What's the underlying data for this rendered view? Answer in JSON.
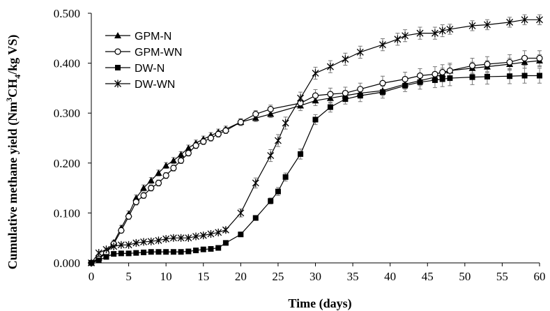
{
  "chart_data": {
    "type": "line",
    "title": "",
    "xlabel": "Time (days)",
    "ylabel_parts": [
      "Cumulative methane yield (Nm",
      "3",
      "CH",
      "4",
      "/kg VS)"
    ],
    "xlim": [
      0,
      60
    ],
    "ylim": [
      0,
      0.5
    ],
    "x_ticks": [
      0,
      5,
      10,
      15,
      20,
      25,
      30,
      35,
      40,
      45,
      50,
      55,
      60
    ],
    "y_ticks": [
      "0.000",
      "0.100",
      "0.200",
      "0.300",
      "0.400",
      "0.500"
    ],
    "y_tick_values": [
      0,
      0.1,
      0.2,
      0.3,
      0.4,
      0.5
    ],
    "grid": false,
    "legend_position": "top-left",
    "series": [
      {
        "name": "GPM-N",
        "marker": "triangle",
        "color": "#000000",
        "x": [
          0,
          1,
          2,
          3,
          4,
          5,
          6,
          7,
          8,
          9,
          10,
          11,
          12,
          13,
          14,
          15,
          16,
          17,
          18,
          20,
          22,
          24,
          28,
          30,
          32,
          34,
          36,
          39,
          42,
          44,
          46,
          47,
          48,
          51,
          53,
          56,
          58,
          60
        ],
        "y": [
          0.0,
          0.01,
          0.022,
          0.041,
          0.07,
          0.098,
          0.13,
          0.15,
          0.165,
          0.18,
          0.195,
          0.205,
          0.217,
          0.23,
          0.24,
          0.248,
          0.255,
          0.262,
          0.268,
          0.282,
          0.29,
          0.298,
          0.315,
          0.325,
          0.33,
          0.335,
          0.34,
          0.345,
          0.358,
          0.365,
          0.372,
          0.378,
          0.385,
          0.39,
          0.393,
          0.398,
          0.402,
          0.405
        ],
        "err": [
          0,
          0.003,
          0.004,
          0.004,
          0.005,
          0.006,
          0.006,
          0.006,
          0.006,
          0.006,
          0.006,
          0.006,
          0.006,
          0.006,
          0.006,
          0.006,
          0.006,
          0.006,
          0.006,
          0.006,
          0.007,
          0.007,
          0.01,
          0.01,
          0.01,
          0.01,
          0.01,
          0.01,
          0.01,
          0.01,
          0.01,
          0.012,
          0.012,
          0.012,
          0.012,
          0.012,
          0.012,
          0.012
        ]
      },
      {
        "name": "GPM-WN",
        "marker": "circle-open",
        "color": "#000000",
        "x": [
          0,
          1,
          2,
          3,
          4,
          5,
          6,
          7,
          8,
          9,
          10,
          11,
          12,
          13,
          14,
          15,
          16,
          17,
          18,
          20,
          22,
          24,
          28,
          30,
          32,
          34,
          36,
          39,
          42,
          44,
          46,
          47,
          48,
          51,
          53,
          56,
          58,
          60
        ],
        "y": [
          0.0,
          0.008,
          0.02,
          0.038,
          0.065,
          0.093,
          0.122,
          0.135,
          0.15,
          0.16,
          0.175,
          0.19,
          0.205,
          0.22,
          0.235,
          0.243,
          0.25,
          0.258,
          0.265,
          0.282,
          0.298,
          0.308,
          0.32,
          0.335,
          0.338,
          0.34,
          0.348,
          0.36,
          0.368,
          0.375,
          0.378,
          0.382,
          0.385,
          0.395,
          0.398,
          0.402,
          0.41,
          0.41
        ],
        "err": [
          0,
          0.003,
          0.004,
          0.004,
          0.005,
          0.006,
          0.006,
          0.006,
          0.006,
          0.006,
          0.006,
          0.006,
          0.006,
          0.006,
          0.006,
          0.006,
          0.006,
          0.006,
          0.006,
          0.007,
          0.007,
          0.008,
          0.01,
          0.012,
          0.012,
          0.012,
          0.012,
          0.014,
          0.014,
          0.014,
          0.015,
          0.015,
          0.015,
          0.015,
          0.015,
          0.015,
          0.015,
          0.015
        ]
      },
      {
        "name": "DW-N",
        "marker": "square",
        "color": "#000000",
        "x": [
          0,
          1,
          2,
          3,
          4,
          5,
          6,
          7,
          8,
          9,
          10,
          11,
          12,
          13,
          14,
          15,
          16,
          17,
          18,
          20,
          22,
          24,
          25,
          26,
          28,
          30,
          32,
          34,
          36,
          39,
          42,
          44,
          46,
          47,
          48,
          51,
          53,
          56,
          58,
          60
        ],
        "y": [
          0.0,
          0.005,
          0.012,
          0.018,
          0.019,
          0.019,
          0.02,
          0.021,
          0.022,
          0.022,
          0.022,
          0.022,
          0.022,
          0.023,
          0.025,
          0.027,
          0.028,
          0.03,
          0.04,
          0.057,
          0.09,
          0.124,
          0.143,
          0.172,
          0.218,
          0.287,
          0.312,
          0.328,
          0.335,
          0.342,
          0.355,
          0.362,
          0.366,
          0.368,
          0.37,
          0.372,
          0.373,
          0.374,
          0.375,
          0.375
        ],
        "err": [
          0,
          0.002,
          0.002,
          0.002,
          0.002,
          0.002,
          0.002,
          0.002,
          0.002,
          0.002,
          0.002,
          0.002,
          0.002,
          0.002,
          0.002,
          0.002,
          0.002,
          0.002,
          0.003,
          0.004,
          0.004,
          0.006,
          0.008,
          0.008,
          0.01,
          0.01,
          0.01,
          0.01,
          0.012,
          0.012,
          0.012,
          0.014,
          0.015,
          0.015,
          0.015,
          0.015,
          0.015,
          0.015,
          0.015,
          0.015
        ]
      },
      {
        "name": "DW-WN",
        "marker": "star",
        "color": "#000000",
        "x": [
          0,
          1,
          2,
          3,
          4,
          5,
          6,
          7,
          8,
          9,
          10,
          11,
          12,
          13,
          14,
          15,
          16,
          17,
          18,
          20,
          22,
          24,
          25,
          26,
          28,
          30,
          32,
          34,
          36,
          39,
          41,
          42,
          44,
          46,
          47,
          48,
          51,
          53,
          56,
          58,
          60
        ],
        "y": [
          0.0,
          0.02,
          0.027,
          0.033,
          0.036,
          0.036,
          0.04,
          0.042,
          0.043,
          0.045,
          0.048,
          0.05,
          0.05,
          0.05,
          0.053,
          0.055,
          0.058,
          0.061,
          0.066,
          0.1,
          0.16,
          0.215,
          0.245,
          0.28,
          0.33,
          0.38,
          0.393,
          0.408,
          0.422,
          0.437,
          0.448,
          0.455,
          0.46,
          0.46,
          0.465,
          0.468,
          0.475,
          0.477,
          0.482,
          0.487,
          0.487
        ],
        "err": [
          0,
          0.002,
          0.002,
          0.002,
          0.002,
          0.002,
          0.002,
          0.002,
          0.002,
          0.002,
          0.002,
          0.002,
          0.002,
          0.002,
          0.002,
          0.002,
          0.002,
          0.002,
          0.004,
          0.008,
          0.01,
          0.012,
          0.012,
          0.012,
          0.012,
          0.012,
          0.012,
          0.012,
          0.012,
          0.012,
          0.012,
          0.012,
          0.012,
          0.012,
          0.012,
          0.01,
          0.01,
          0.01,
          0.01,
          0.01,
          0.01
        ]
      }
    ]
  }
}
